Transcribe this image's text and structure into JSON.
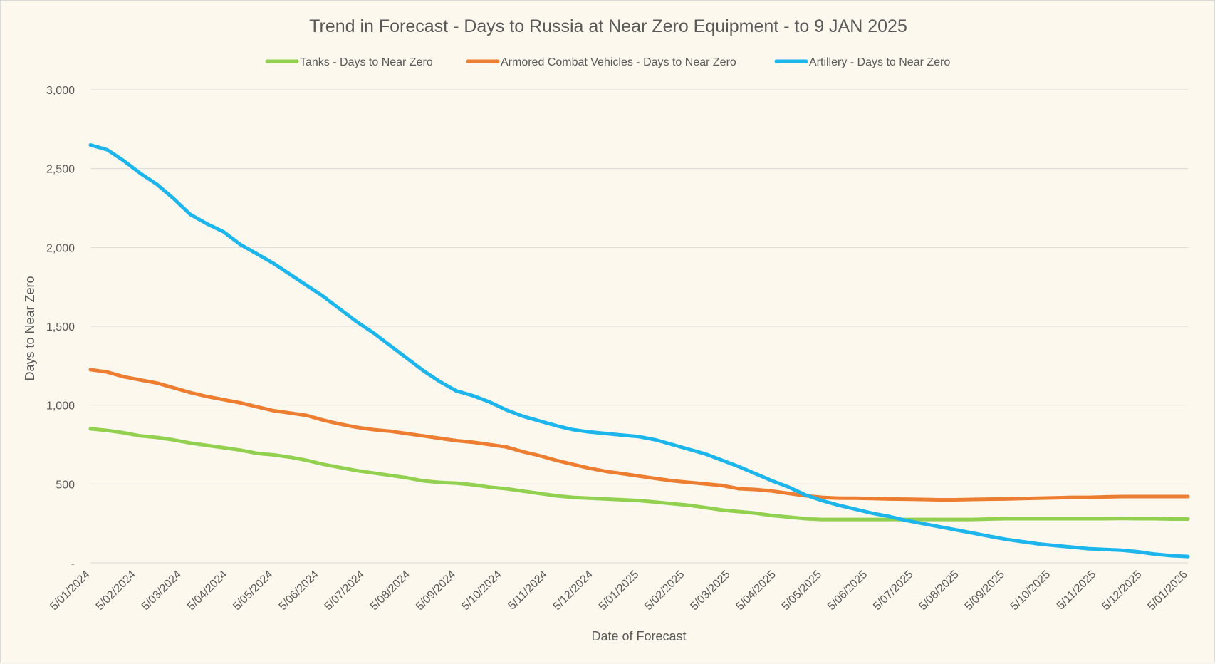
{
  "chart_data": {
    "type": "line",
    "title": "Trend in Forecast - Days to Russia at Near Zero Equipment - to 9 JAN 2025",
    "xlabel": "Date of Forecast",
    "ylabel": "Days to Near Zero",
    "ylim": [
      0,
      3000
    ],
    "y_ticks": [
      0,
      500,
      1000,
      1500,
      2000,
      2500,
      3000
    ],
    "y_tick_labels": [
      "-",
      "500",
      "1,000",
      "1,500",
      "2,000",
      "2,500",
      "3,000"
    ],
    "x_tick_labels": [
      "5/01/2024",
      "5/02/2024",
      "5/03/2024",
      "5/04/2024",
      "5/05/2024",
      "5/06/2024",
      "5/07/2024",
      "5/08/2024",
      "5/09/2024",
      "5/10/2024",
      "5/11/2024",
      "5/12/2024",
      "5/01/2025",
      "5/02/2025",
      "5/03/2025",
      "5/04/2025",
      "5/05/2025",
      "5/06/2025",
      "5/07/2025",
      "5/08/2025",
      "5/09/2025",
      "5/10/2025",
      "5/11/2025",
      "5/12/2025",
      "5/01/2026"
    ],
    "grid": true,
    "legend_position": "top",
    "series": [
      {
        "name": "Tanks - Days to Near Zero",
        "color": "#92d050",
        "values": [
          850,
          840,
          825,
          805,
          795,
          780,
          760,
          745,
          730,
          715,
          695,
          685,
          670,
          650,
          625,
          605,
          585,
          570,
          555,
          540,
          520,
          510,
          505,
          495,
          480,
          470,
          455,
          440,
          425,
          415,
          410,
          405,
          400,
          395,
          385,
          375,
          365,
          350,
          335,
          325,
          315,
          300,
          290,
          280,
          275,
          275,
          275,
          275,
          275,
          275,
          275,
          275,
          275,
          275,
          278,
          280,
          280,
          280,
          280,
          280,
          280,
          280,
          282,
          280,
          280,
          278,
          278
        ]
      },
      {
        "name": "Armored Combat Vehicles - Days to Near Zero",
        "color": "#ed7d31",
        "values": [
          1225,
          1210,
          1180,
          1160,
          1140,
          1110,
          1080,
          1055,
          1035,
          1015,
          990,
          965,
          950,
          935,
          905,
          880,
          860,
          845,
          835,
          820,
          805,
          790,
          775,
          765,
          750,
          735,
          705,
          680,
          650,
          625,
          600,
          580,
          565,
          550,
          535,
          520,
          510,
          500,
          490,
          470,
          465,
          455,
          440,
          425,
          415,
          410,
          410,
          408,
          405,
          404,
          402,
          400,
          400,
          402,
          404,
          405,
          408,
          410,
          412,
          415,
          415,
          418,
          420,
          420,
          420,
          420,
          420
        ]
      },
      {
        "name": "Artillery - Days to Near Zero",
        "color": "#1cb5ec",
        "values": [
          2650,
          2620,
          2550,
          2470,
          2400,
          2310,
          2210,
          2150,
          2100,
          2020,
          1960,
          1900,
          1830,
          1760,
          1690,
          1610,
          1530,
          1460,
          1380,
          1300,
          1220,
          1150,
          1090,
          1060,
          1020,
          970,
          930,
          900,
          870,
          845,
          830,
          820,
          810,
          800,
          780,
          750,
          720,
          690,
          650,
          610,
          565,
          520,
          480,
          430,
          395,
          365,
          340,
          315,
          295,
          270,
          250,
          230,
          210,
          190,
          170,
          150,
          135,
          120,
          110,
          100,
          90,
          85,
          80,
          70,
          55,
          45,
          40
        ]
      }
    ]
  }
}
